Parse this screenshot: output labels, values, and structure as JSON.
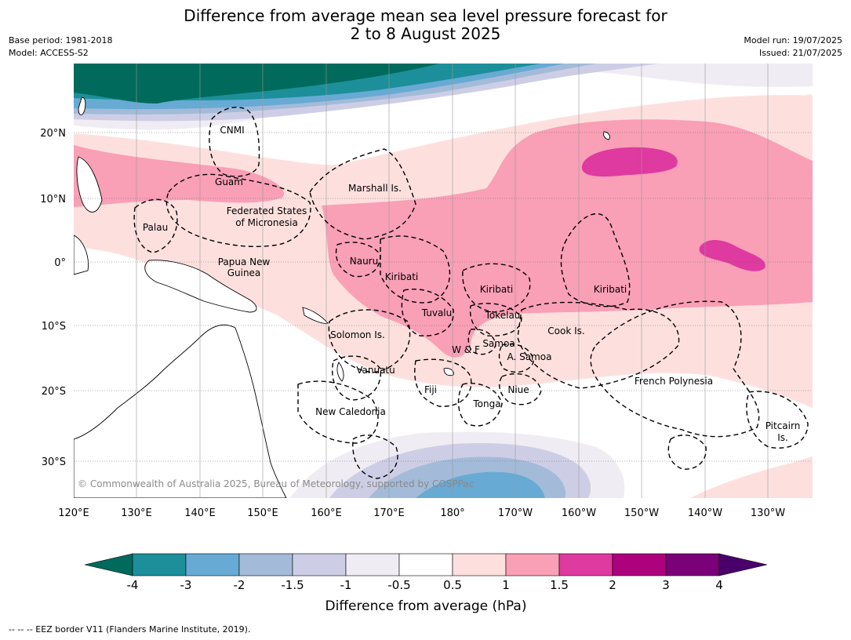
{
  "header": {
    "title_line1": "Difference from average mean sea level pressure forecast for",
    "title_line2": "2 to 8 August 2025",
    "base_period": "Base period: 1981-2018",
    "model": "Model: ACCESS-S2",
    "model_run": "Model run: 19/07/2025",
    "issued": "Issued: 21/07/2025"
  },
  "map": {
    "lon_ticks": [
      "120°E",
      "130°E",
      "140°E",
      "150°E",
      "160°E",
      "170°E",
      "180°",
      "170°W",
      "160°W",
      "150°W",
      "140°W",
      "130°W"
    ],
    "lat_ticks": [
      "20°N",
      "10°N",
      "0°",
      "10°S",
      "20°S",
      "30°S"
    ],
    "copyright": "© Commonwealth of Australia 2025, Bureau of Meteorology, supported by COSPPac",
    "labels": {
      "cnmi": "CNMI",
      "guam": "Guam",
      "marshall": "Marshall Is.",
      "fsm_1": "Federated States",
      "fsm_2": "of Micronesia",
      "palau": "Palau",
      "png_1": "Papua New",
      "png_2": "Guinea",
      "nauru": "Nauru",
      "kiribati_w": "Kiribati",
      "kiribati_c": "Kiribati",
      "kiribati_e": "Kiribati",
      "tuvalu": "Tuvalu",
      "tokelau": "Tokelau",
      "solomon": "Solomon Is.",
      "cook": "Cook Is.",
      "samoa": "Samoa",
      "wf": "W & F",
      "asamoa": "A. Samoa",
      "vanuatu": "Vanuatu",
      "fiji": "Fiji",
      "niue": "Niue",
      "tonga": "Tonga",
      "frpoly": "French Polynesia",
      "newcal": "New Caledonia",
      "pitcairn_1": "Pitcairn",
      "pitcairn_2": "Is."
    }
  },
  "colorbar": {
    "title": "Difference from average (hPa)",
    "ticks": [
      "-4",
      "-3",
      "-2",
      "-1.5",
      "-1",
      "-0.5",
      "0.5",
      "1",
      "1.5",
      "2",
      "3",
      "4"
    ],
    "colors": {
      "lt_-4": "#006b5c",
      "-4_-3": "#1c8f9a",
      "-3_-2": "#67aad4",
      "-2_-1.5": "#a3bbd9",
      "-1.5_-1": "#cdcee6",
      "-1_-0.5": "#f0ecf3",
      "-0.5_0.5": "#ffffff",
      "0.5_1": "#fde0de",
      "1_1.5": "#f99fb6",
      "1.5_2": "#de3aa0",
      "2_3": "#ae017e",
      "3_4": "#7a0177",
      "gt_4": "#49006a"
    }
  },
  "footer": {
    "eez_note": "--  --  -- EEZ border V11 (Flanders Marine Institute, 2019)."
  }
}
